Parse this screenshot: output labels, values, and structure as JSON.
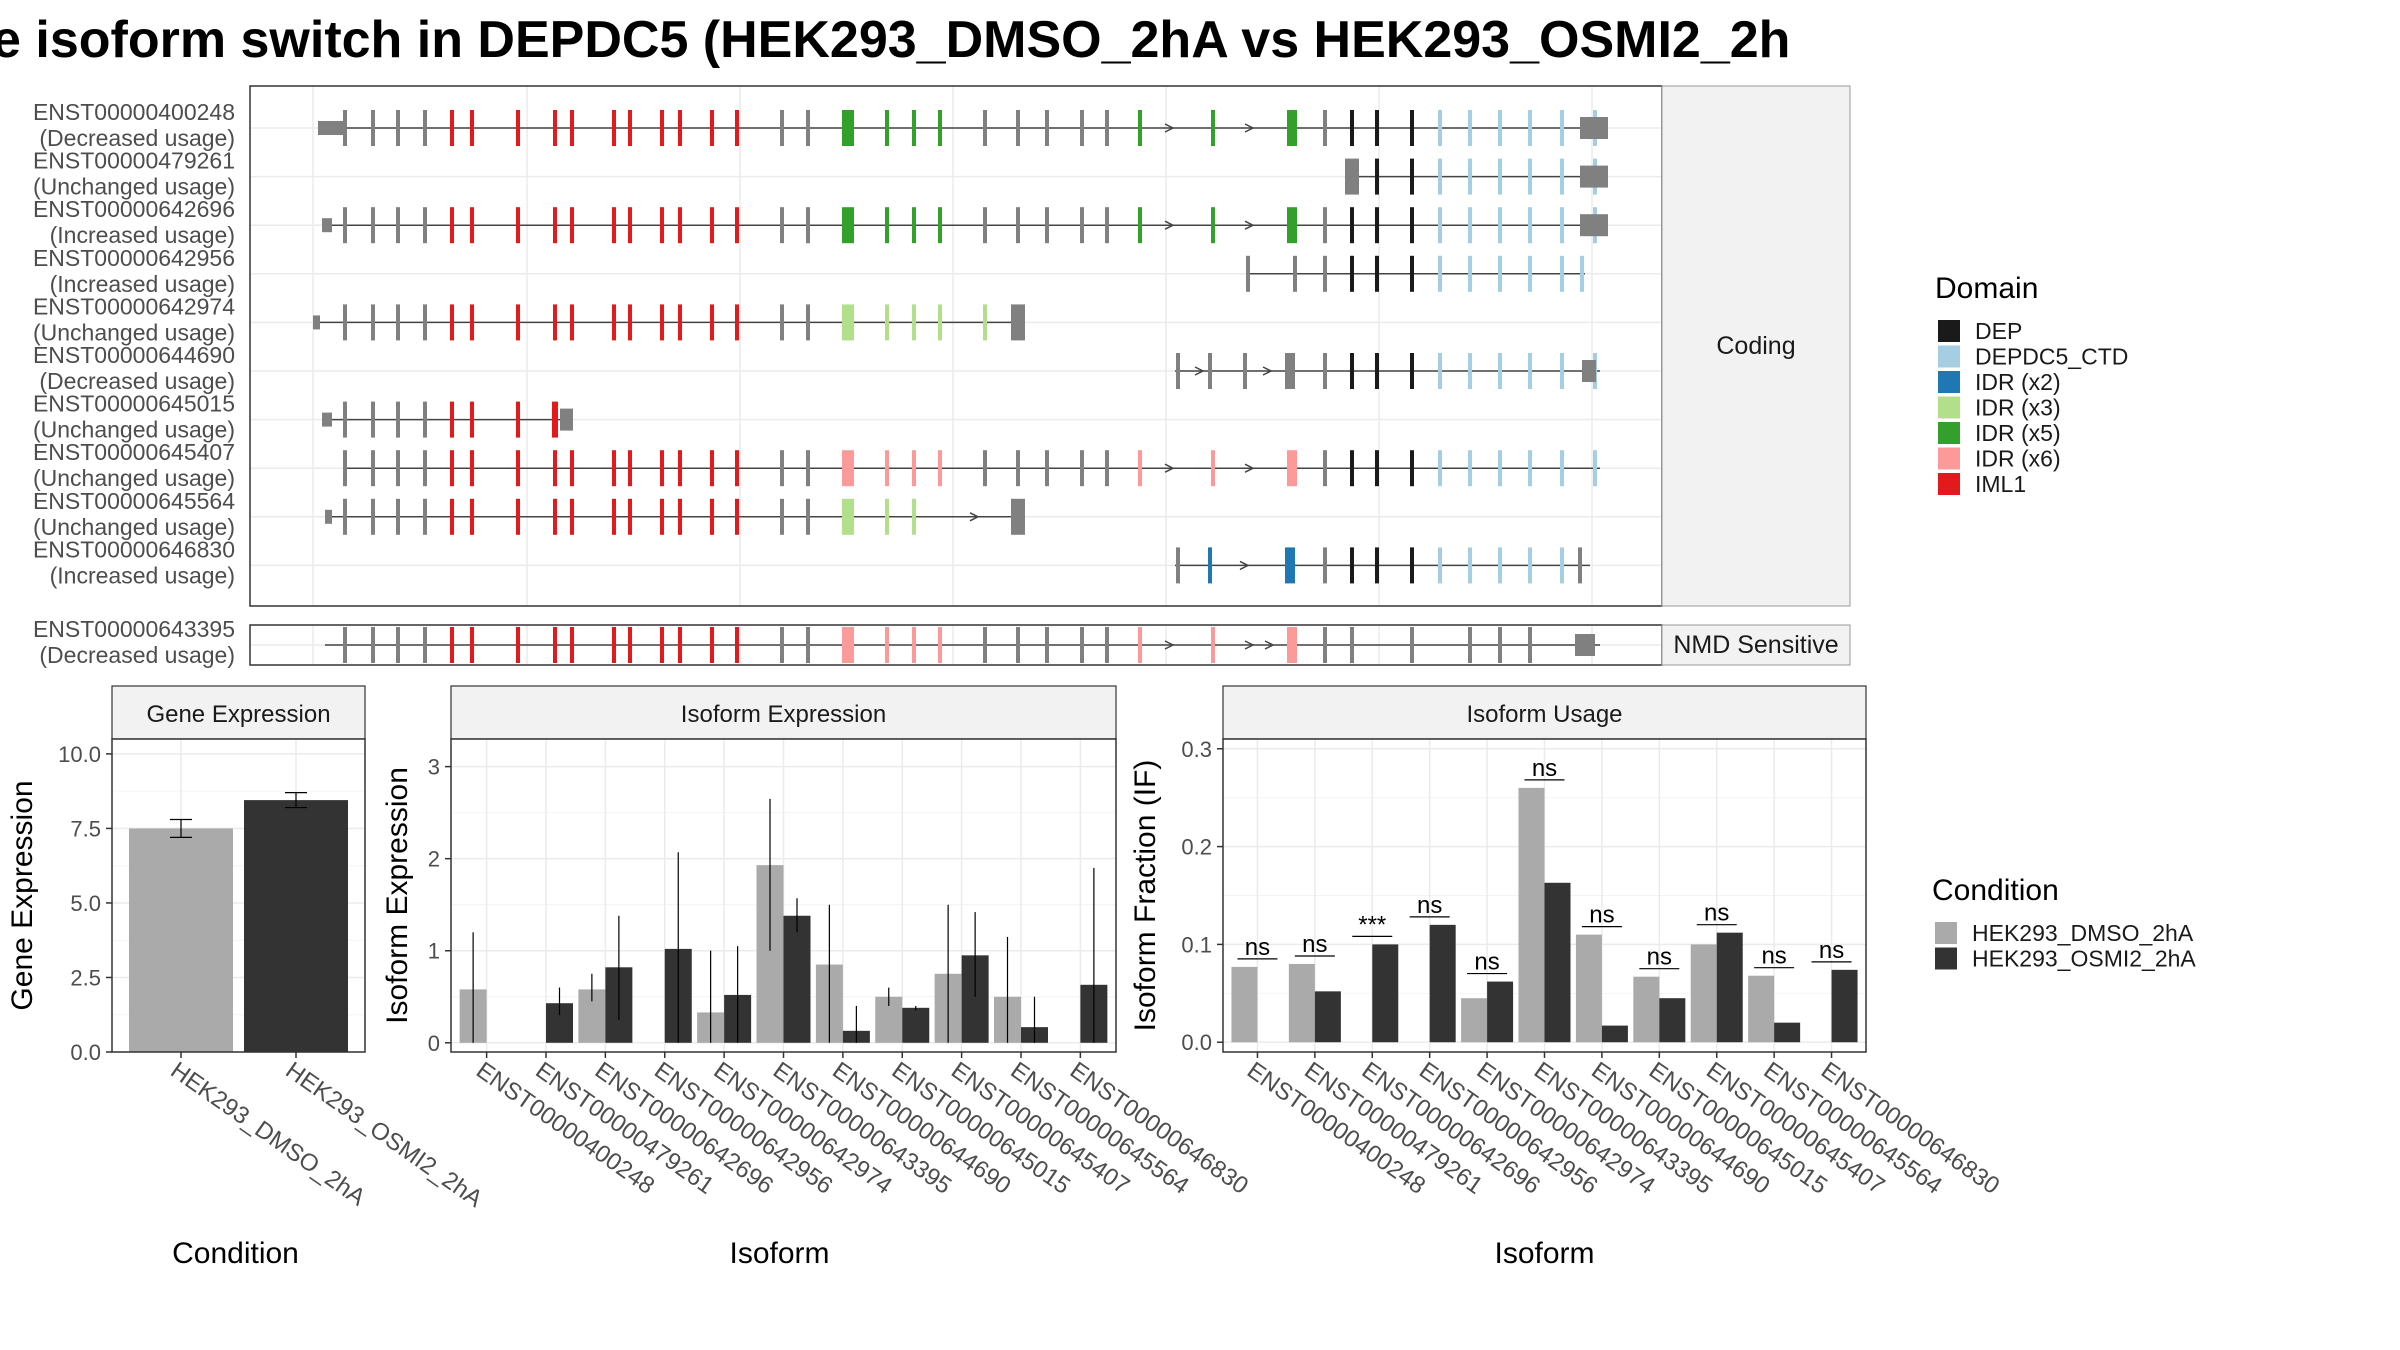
{
  "title": "e isoform switch in DEPDC5 (HEK293_DMSO_2hA vs HEK293_OSMI2_2h",
  "structure": {
    "coding_strip": "Coding",
    "nmd_strip": "NMD Sensitive",
    "coding_isoforms": [
      {
        "id": "ENST00000400248",
        "usage": "(Decreased usage)"
      },
      {
        "id": "ENST00000479261",
        "usage": "(Unchanged usage)"
      },
      {
        "id": "ENST00000642696",
        "usage": "(Increased usage)"
      },
      {
        "id": "ENST00000642956",
        "usage": "(Increased usage)"
      },
      {
        "id": "ENST00000642974",
        "usage": "(Unchanged usage)"
      },
      {
        "id": "ENST00000644690",
        "usage": "(Decreased usage)"
      },
      {
        "id": "ENST00000645015",
        "usage": "(Unchanged usage)"
      },
      {
        "id": "ENST00000645407",
        "usage": "(Unchanged usage)"
      },
      {
        "id": "ENST00000645564",
        "usage": "(Unchanged usage)"
      },
      {
        "id": "ENST00000646830",
        "usage": "(Increased usage)"
      }
    ],
    "nmd_isoforms": [
      {
        "id": "ENST00000643395",
        "usage": "(Decreased usage)"
      }
    ]
  },
  "domain_legend": {
    "title": "Domain",
    "entries": [
      {
        "label": "DEP",
        "color": "#1a1a1a"
      },
      {
        "label": "DEPDC5_CTD",
        "color": "#a6cee3"
      },
      {
        "label": "IDR (x2)",
        "color": "#1f78b4"
      },
      {
        "label": "IDR (x3)",
        "color": "#b2df8a"
      },
      {
        "label": "IDR (x5)",
        "color": "#33a02c"
      },
      {
        "label": "IDR (x6)",
        "color": "#fb9a99"
      },
      {
        "label": "IML1",
        "color": "#e31a1c"
      }
    ]
  },
  "condition_legend": {
    "title": "Condition",
    "entries": [
      {
        "label": "HEK293_DMSO_2hA",
        "color": "#aaaaaa"
      },
      {
        "label": "HEK293_OSMI2_2hA",
        "color": "#333333"
      }
    ]
  },
  "chart_data": [
    {
      "type": "bar",
      "title": "Gene Expression",
      "xlabel": "Condition",
      "ylabel": "Gene Expression",
      "ylim": [
        0,
        10.5
      ],
      "yticks": [
        "0.0",
        "2.5",
        "5.0",
        "7.5",
        "10.0"
      ],
      "categories": [
        "HEK293_DMSO_2hA",
        "HEK293_OSMI2_2hA"
      ],
      "values": [
        7.5,
        8.45
      ],
      "errors": [
        [
          7.2,
          7.8
        ],
        [
          8.2,
          8.7
        ]
      ]
    },
    {
      "type": "bar",
      "title": "Isoform Expression",
      "xlabel": "Isoform",
      "ylabel": "Isoform Expression",
      "ylim": [
        -0.1,
        3.3
      ],
      "yticks": [
        "0",
        "1",
        "2",
        "3"
      ],
      "categories": [
        "ENST00000400248",
        "ENST00000479261",
        "ENST00000642696",
        "ENST00000642956",
        "ENST00000642974",
        "ENST00000643395",
        "ENST00000644690",
        "ENST00000645015",
        "ENST00000645407",
        "ENST00000645564",
        "ENST00000646830"
      ],
      "series": [
        {
          "name": "HEK293_DMSO_2hA",
          "values": [
            0.58,
            0.0,
            0.58,
            0.0,
            0.33,
            1.93,
            0.85,
            0.5,
            0.75,
            0.5,
            0.0
          ],
          "errors": [
            [
              0.0,
              1.2
            ],
            [
              0.0,
              0.0
            ],
            [
              0.45,
              0.75
            ],
            [
              0.0,
              0.0
            ],
            [
              0.0,
              1.0
            ],
            [
              1.0,
              2.65
            ],
            [
              0.0,
              1.5
            ],
            [
              0.4,
              0.6
            ],
            [
              0.0,
              1.5
            ],
            [
              0.0,
              1.15
            ],
            [
              0.0,
              0.0
            ]
          ]
        },
        {
          "name": "HEK293_OSMI2_2hA",
          "values": [
            0.0,
            0.43,
            0.82,
            1.02,
            0.52,
            1.38,
            0.13,
            0.38,
            0.95,
            0.17,
            0.63
          ],
          "errors": [
            [
              0.0,
              0.0
            ],
            [
              0.3,
              0.6
            ],
            [
              0.25,
              1.38
            ],
            [
              0.0,
              2.07
            ],
            [
              0.0,
              1.05
            ],
            [
              1.2,
              1.57
            ],
            [
              0.0,
              0.4
            ],
            [
              0.35,
              0.4
            ],
            [
              0.5,
              1.42
            ],
            [
              0.0,
              0.5
            ],
            [
              0.0,
              1.9
            ]
          ]
        }
      ]
    },
    {
      "type": "bar",
      "title": "Isoform Usage",
      "xlabel": "Isoform",
      "ylabel": "Isoform Fraction (IF)",
      "ylim": [
        -0.01,
        0.31
      ],
      "yticks": [
        "0.0",
        "0.1",
        "0.2",
        "0.3"
      ],
      "categories": [
        "ENST00000400248",
        "ENST00000479261",
        "ENST00000642696",
        "ENST00000642956",
        "ENST00000642974",
        "ENST00000643395",
        "ENST00000644690",
        "ENST00000645015",
        "ENST00000645407",
        "ENST00000645564",
        "ENST00000646830"
      ],
      "series": [
        {
          "name": "HEK293_DMSO_2hA",
          "values": [
            0.077,
            0.08,
            0.0,
            0.0,
            0.045,
            0.26,
            0.11,
            0.067,
            0.1,
            0.068,
            0.0
          ]
        },
        {
          "name": "HEK293_OSMI2_2hA",
          "values": [
            0.0,
            0.052,
            0.1,
            0.12,
            0.062,
            0.163,
            0.017,
            0.045,
            0.112,
            0.02,
            0.074
          ]
        }
      ],
      "significance": [
        "ns",
        "ns",
        "***",
        "ns",
        "ns",
        "ns",
        "ns",
        "ns",
        "ns",
        "ns",
        "ns"
      ]
    }
  ]
}
